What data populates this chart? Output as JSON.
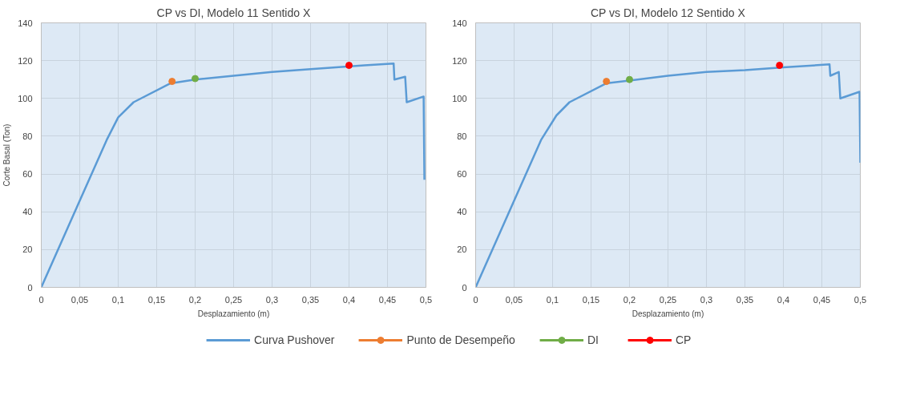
{
  "chart_data": [
    {
      "type": "line",
      "title": "CP vs DI, Modelo 11 Sentido X",
      "xlabel": "Desplazamiento (m)",
      "ylabel": "Corte Basal (Ton)",
      "xlim": [
        0,
        0.5
      ],
      "ylim": [
        0,
        140
      ],
      "xticks": [
        0,
        {
          "value": 0.05,
          "label": "0,05"
        },
        {
          "value": 0.1,
          "label": "0,1"
        },
        {
          "value": 0.15,
          "label": "0,15"
        },
        {
          "value": 0.2,
          "label": "0,2"
        },
        {
          "value": 0.25,
          "label": "0,25"
        },
        {
          "value": 0.3,
          "label": "0,3"
        },
        {
          "value": 0.35,
          "label": "0,35"
        },
        {
          "value": 0.4,
          "label": "0,4"
        },
        {
          "value": 0.45,
          "label": "0,45"
        },
        {
          "value": 0.5,
          "label": "0,5"
        }
      ],
      "yticks": [
        0,
        20,
        40,
        60,
        80,
        100,
        120,
        140
      ],
      "grid": true,
      "legend": "bottom",
      "series": [
        {
          "name": "Curva Pushover",
          "color": "#5b9bd5",
          "marker": "none",
          "x": [
            0,
            0.085,
            0.1,
            0.12,
            0.168,
            0.2,
            0.25,
            0.3,
            0.35,
            0.42,
            0.458,
            0.459,
            0.473,
            0.475,
            0.497,
            0.498
          ],
          "values": [
            0,
            78,
            90,
            98,
            108,
            110,
            112,
            114,
            115.5,
            117.5,
            118.5,
            110,
            111.5,
            98,
            101,
            57
          ]
        },
        {
          "name": "Punto de Desempeño",
          "type": "scatter",
          "color": "#ed7d31",
          "marker": "circle",
          "x": [
            0.17
          ],
          "values": [
            109
          ]
        },
        {
          "name": "DI",
          "type": "scatter",
          "color": "#70ad47",
          "marker": "circle",
          "x": [
            0.2
          ],
          "values": [
            110.5
          ]
        },
        {
          "name": "CP",
          "type": "scatter",
          "color": "#ff0000",
          "marker": "circle",
          "x": [
            0.4
          ],
          "values": [
            117.5
          ]
        }
      ]
    },
    {
      "type": "line",
      "title": "CP vs DI, Modelo 12 Sentido X",
      "xlabel": "Desplazamiento (m)",
      "xlim": [
        0,
        0.5
      ],
      "ylim": [
        0,
        140
      ],
      "xticks": [
        0,
        {
          "value": 0.05,
          "label": "0,05"
        },
        {
          "value": 0.1,
          "label": "0,1"
        },
        {
          "value": 0.15,
          "label": "0,15"
        },
        {
          "value": 0.2,
          "label": "0,2"
        },
        {
          "value": 0.25,
          "label": "0,25"
        },
        {
          "value": 0.3,
          "label": "0,3"
        },
        {
          "value": 0.35,
          "label": "0,35"
        },
        {
          "value": 0.4,
          "label": "0,4"
        },
        {
          "value": 0.45,
          "label": "0,45"
        },
        {
          "value": 0.5,
          "label": "0,5"
        }
      ],
      "yticks": [
        0,
        20,
        40,
        60,
        80,
        100,
        120,
        140
      ],
      "grid": true,
      "series": [
        {
          "color": "#5b9bd5",
          "marker": "none",
          "x": [
            0,
            0.085,
            0.105,
            0.122,
            0.17,
            0.2,
            0.25,
            0.3,
            0.35,
            0.4,
            0.46,
            0.461,
            0.472,
            0.474,
            0.499,
            0.5
          ],
          "values": [
            0,
            78,
            91,
            98,
            108,
            109.5,
            112,
            114,
            115,
            116.5,
            118,
            112,
            114,
            100,
            103.5,
            66
          ]
        },
        {
          "type": "scatter",
          "color": "#ed7d31",
          "marker": "circle",
          "x": [
            0.17
          ],
          "values": [
            109
          ]
        },
        {
          "type": "scatter",
          "color": "#70ad47",
          "marker": "circle",
          "x": [
            0.2
          ],
          "values": [
            110
          ]
        },
        {
          "type": "scatter",
          "color": "#ff0000",
          "marker": "circle",
          "x": [
            0.395
          ],
          "values": [
            117.5
          ]
        }
      ]
    }
  ]
}
